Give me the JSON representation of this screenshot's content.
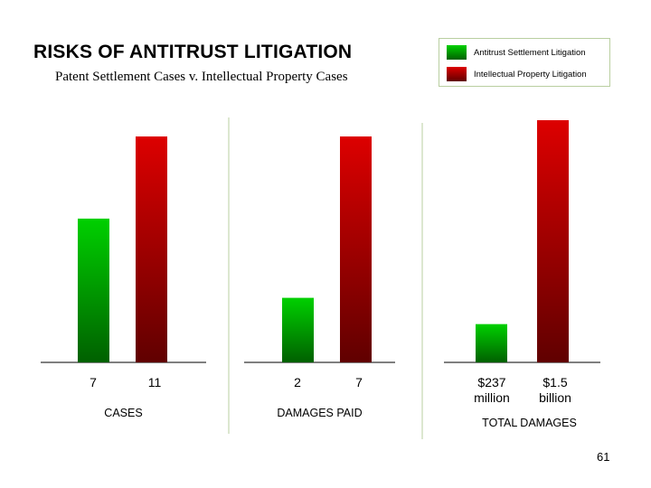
{
  "title": "RISKS OF ANTITRUST LITIGATION",
  "subtitle": "Patent Settlement Cases v. Intellectual Property Cases",
  "legend": [
    {
      "label": "Antitrust Settlement Litigation",
      "color_top": "#00d000",
      "color_bottom": "#006000"
    },
    {
      "label": "Intellectual Property Litigation",
      "color_top": "#dd0000",
      "color_bottom": "#600000"
    }
  ],
  "page_number": "61",
  "chart_data": [
    {
      "type": "bar",
      "xlabel": "CASES",
      "series": [
        {
          "name": "Antitrust Settlement Litigation",
          "values": [
            7
          ],
          "value_labels": [
            "7"
          ]
        },
        {
          "name": "Intellectual Property Litigation",
          "values": [
            11
          ],
          "value_labels": [
            "11"
          ]
        }
      ]
    },
    {
      "type": "bar",
      "xlabel": "DAMAGES PAID",
      "series": [
        {
          "name": "Antitrust Settlement Litigation",
          "values": [
            2
          ],
          "value_labels": [
            "2"
          ]
        },
        {
          "name": "Intellectual Property Litigation",
          "values": [
            7
          ],
          "value_labels": [
            "7"
          ]
        }
      ]
    },
    {
      "type": "bar",
      "xlabel": "TOTAL DAMAGES",
      "series": [
        {
          "name": "Antitrust Settlement Litigation",
          "values": [
            237000000
          ],
          "value_labels": [
            "$237",
            "million"
          ]
        },
        {
          "name": "Intellectual Property Litigation",
          "values": [
            1500000000
          ],
          "value_labels": [
            "$1.5",
            "billion"
          ]
        }
      ]
    }
  ]
}
